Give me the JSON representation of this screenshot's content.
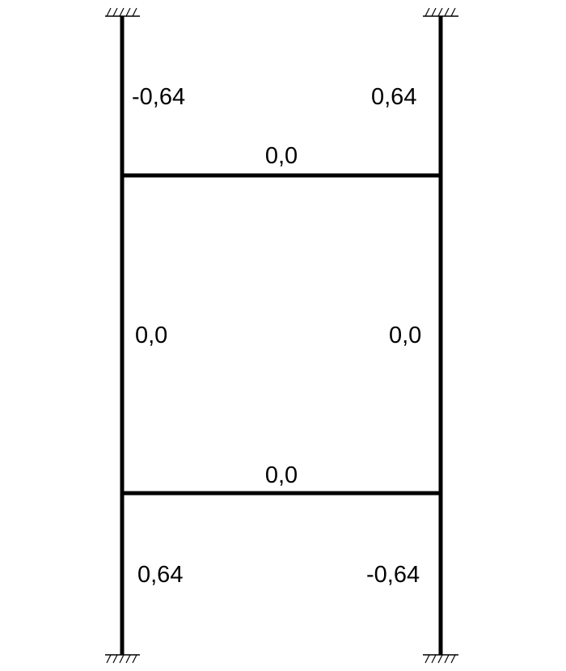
{
  "diagram": {
    "labels": {
      "left_column_top": "-0,64",
      "right_column_top": "0,64",
      "top_beam": "0,0",
      "left_column_middle": "0,0",
      "right_column_middle": "0,0",
      "bottom_beam": "0,0",
      "left_column_bottom": "0,64",
      "right_column_bottom": "-0,64"
    },
    "colors": {
      "line": "#000000",
      "text": "#000000",
      "background": "#ffffff"
    }
  }
}
